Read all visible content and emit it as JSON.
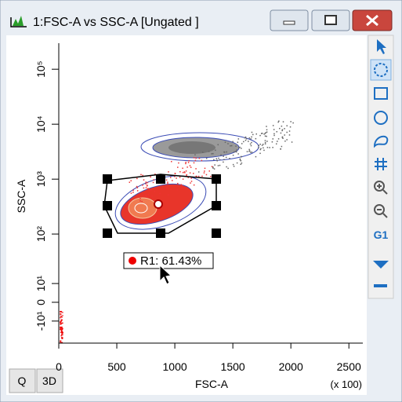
{
  "window": {
    "title": "1:FSC-A vs SSC-A [Ungated ]"
  },
  "plot": {
    "x_label": "FSC-A",
    "x_multiplier": "(x 100)",
    "y_label": "SSC-A",
    "xlim": [
      0,
      2620
    ],
    "xticks": [
      0,
      500,
      1000,
      1500,
      2000,
      2500
    ],
    "yticks": [
      {
        "value": 100000,
        "label": "10⁵"
      },
      {
        "value": 10000,
        "label": "10⁴"
      },
      {
        "value": 1000,
        "label": "10³"
      },
      {
        "value": 100,
        "label": "10²"
      },
      {
        "value": 10,
        "label": "10¹"
      },
      0,
      {
        "value": -10,
        "label": "-10¹"
      }
    ],
    "gate_label": "R1: 61.43%"
  },
  "toolbar": {
    "group_button": "G1"
  },
  "buttons": [
    "Q",
    "3D"
  ]
}
